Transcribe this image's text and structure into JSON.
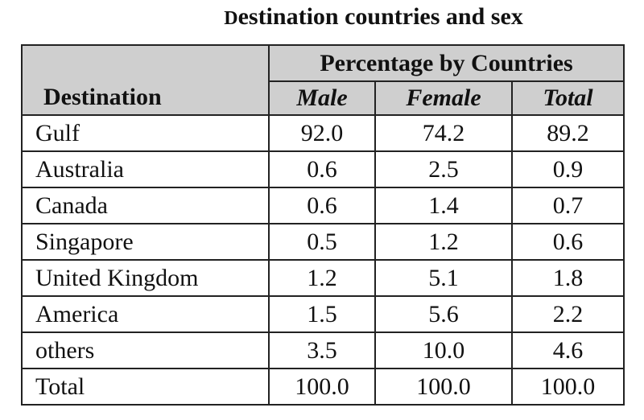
{
  "title": {
    "first_letter": "D",
    "rest": "estination countries and sex"
  },
  "table": {
    "row_header": "Destination",
    "group_header": "Percentage by Countries",
    "columns": [
      "Male",
      "Female",
      "Total"
    ],
    "rows": [
      {
        "name": "Gulf",
        "values": [
          "92.0",
          "74.2",
          "89.2"
        ]
      },
      {
        "name": "Australia",
        "values": [
          "0.6",
          "2.5",
          "0.9"
        ]
      },
      {
        "name": "Canada",
        "values": [
          "0.6",
          "1.4",
          "0.7"
        ]
      },
      {
        "name": "Singapore",
        "values": [
          "0.5",
          "1.2",
          "0.6"
        ]
      },
      {
        "name": "United Kingdom",
        "values": [
          "1.2",
          "5.1",
          "1.8"
        ]
      },
      {
        "name": "America",
        "values": [
          "1.5",
          "5.6",
          "2.2"
        ]
      },
      {
        "name": "others",
        "values": [
          "3.5",
          "10.0",
          "4.6"
        ]
      },
      {
        "name": "Total",
        "values": [
          "100.0",
          "100.0",
          "100.0"
        ]
      }
    ]
  }
}
